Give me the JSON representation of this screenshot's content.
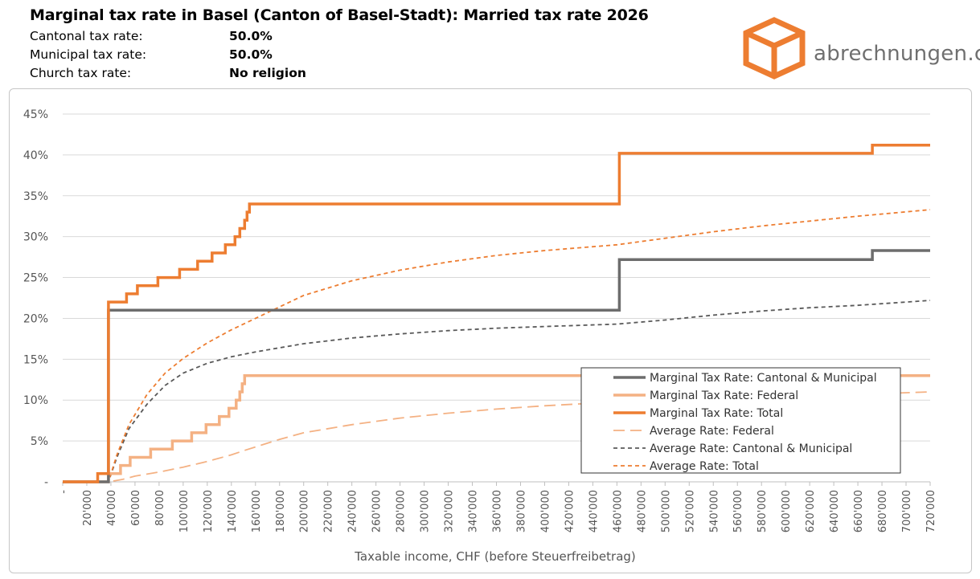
{
  "header": {
    "title": "Marginal tax rate in Basel (Canton of Basel-Stadt): Married tax rate 2026",
    "info": [
      {
        "label": "Cantonal tax rate:",
        "value": "50.0%"
      },
      {
        "label": "Municipal tax rate:",
        "value": "50.0%"
      },
      {
        "label": "Church tax rate:",
        "value": "No religion"
      }
    ]
  },
  "brand": {
    "name": "abrechnungen.ch",
    "logo_icon": "cube-icon",
    "color": "#ed7d31"
  },
  "chart_data": {
    "type": "line",
    "xlabel": "Taxable income, CHF (before Steuerfreibetrag)",
    "ylabel": "",
    "xlim": [
      0,
      720000
    ],
    "ylim": [
      0,
      45
    ],
    "grid": true,
    "legend_position": "right",
    "y_ticks": [
      0,
      5,
      10,
      15,
      20,
      25,
      30,
      35,
      40,
      45
    ],
    "y_tick_labels": [
      "-",
      "5%",
      "10%",
      "15%",
      "20%",
      "25%",
      "30%",
      "35%",
      "40%",
      "45%"
    ],
    "x_ticks": [
      0,
      20000,
      40000,
      60000,
      80000,
      100000,
      120000,
      140000,
      160000,
      180000,
      200000,
      220000,
      240000,
      260000,
      280000,
      300000,
      320000,
      340000,
      360000,
      380000,
      400000,
      420000,
      440000,
      460000,
      480000,
      500000,
      520000,
      540000,
      560000,
      580000,
      600000,
      620000,
      640000,
      660000,
      680000,
      700000,
      720000
    ],
    "x_tick_labels": [
      "-",
      "20'000",
      "40'000",
      "60'000",
      "80'000",
      "100'000",
      "120'000",
      "140'000",
      "160'000",
      "180'000",
      "200'000",
      "220'000",
      "240'000",
      "260'000",
      "280'000",
      "300'000",
      "320'000",
      "340'000",
      "360'000",
      "380'000",
      "400'000",
      "420'000",
      "440'000",
      "460'000",
      "480'000",
      "500'000",
      "520'000",
      "540'000",
      "560'000",
      "580'000",
      "600'000",
      "620'000",
      "640'000",
      "660'000",
      "680'000",
      "700'000",
      "720'000"
    ],
    "series": [
      {
        "name": "Marginal Tax Rate: Cantonal & Municipal",
        "color": "#6d6d6d",
        "style": "solid",
        "step": true,
        "points": [
          [
            0,
            0
          ],
          [
            38000,
            0
          ],
          [
            38000,
            21
          ],
          [
            462000,
            21
          ],
          [
            462000,
            27.2
          ],
          [
            672000,
            27.2
          ],
          [
            672000,
            28.3
          ],
          [
            720000,
            28.3
          ]
        ]
      },
      {
        "name": "Marginal Tax Rate: Federal",
        "color": "#f4b183",
        "style": "solid",
        "step": true,
        "points": [
          [
            0,
            0
          ],
          [
            38000,
            0
          ],
          [
            38000,
            1
          ],
          [
            48000,
            1
          ],
          [
            48000,
            2
          ],
          [
            56000,
            2
          ],
          [
            56000,
            3
          ],
          [
            73000,
            3
          ],
          [
            73000,
            4
          ],
          [
            91000,
            4
          ],
          [
            91000,
            5
          ],
          [
            107000,
            5
          ],
          [
            107000,
            6
          ],
          [
            119000,
            6
          ],
          [
            119000,
            7
          ],
          [
            130000,
            7
          ],
          [
            130000,
            8
          ],
          [
            138000,
            8
          ],
          [
            138000,
            9
          ],
          [
            144000,
            9
          ],
          [
            144000,
            10
          ],
          [
            147000,
            10
          ],
          [
            147000,
            11
          ],
          [
            149000,
            11
          ],
          [
            149000,
            12
          ],
          [
            151000,
            12
          ],
          [
            151000,
            13
          ],
          [
            720000,
            13
          ]
        ]
      },
      {
        "name": "Marginal Tax Rate: Total",
        "color": "#ed7d31",
        "style": "solid",
        "step": true,
        "points": [
          [
            0,
            0
          ],
          [
            29000,
            0
          ],
          [
            29000,
            1
          ],
          [
            38000,
            1
          ],
          [
            38000,
            22
          ],
          [
            53000,
            22
          ],
          [
            53000,
            23
          ],
          [
            62000,
            23
          ],
          [
            62000,
            24
          ],
          [
            79000,
            24
          ],
          [
            79000,
            25
          ],
          [
            97000,
            25
          ],
          [
            97000,
            26
          ],
          [
            112000,
            26
          ],
          [
            112000,
            27
          ],
          [
            124000,
            27
          ],
          [
            124000,
            28
          ],
          [
            135000,
            28
          ],
          [
            135000,
            29
          ],
          [
            143000,
            29
          ],
          [
            143000,
            30
          ],
          [
            147000,
            30
          ],
          [
            147000,
            31
          ],
          [
            151000,
            31
          ],
          [
            151000,
            32
          ],
          [
            153000,
            32
          ],
          [
            153000,
            33
          ],
          [
            155000,
            33
          ],
          [
            155000,
            34
          ],
          [
            462000,
            34
          ],
          [
            462000,
            40.2
          ],
          [
            672000,
            40.2
          ],
          [
            672000,
            41.2
          ],
          [
            720000,
            41.2
          ]
        ]
      },
      {
        "name": "Average Rate: Federal",
        "color": "#f4b183",
        "style": "longdash",
        "step": false,
        "points": [
          [
            0,
            0
          ],
          [
            38000,
            0
          ],
          [
            50000,
            0.3
          ],
          [
            60000,
            0.7
          ],
          [
            80000,
            1.2
          ],
          [
            100000,
            1.8
          ],
          [
            120000,
            2.5
          ],
          [
            140000,
            3.3
          ],
          [
            150000,
            3.8
          ],
          [
            180000,
            5.2
          ],
          [
            200000,
            6.0
          ],
          [
            240000,
            7.0
          ],
          [
            280000,
            7.8
          ],
          [
            320000,
            8.4
          ],
          [
            360000,
            8.9
          ],
          [
            400000,
            9.3
          ],
          [
            450000,
            9.7
          ],
          [
            500000,
            10.0
          ],
          [
            560000,
            10.3
          ],
          [
            620000,
            10.6
          ],
          [
            680000,
            10.8
          ],
          [
            720000,
            11.0
          ]
        ]
      },
      {
        "name": "Average Rate: Cantonal & Municipal",
        "color": "#595959",
        "style": "dash",
        "step": false,
        "points": [
          [
            0,
            0
          ],
          [
            38000,
            0
          ],
          [
            45000,
            3.0
          ],
          [
            55000,
            6.5
          ],
          [
            70000,
            9.5
          ],
          [
            85000,
            11.8
          ],
          [
            100000,
            13.3
          ],
          [
            120000,
            14.5
          ],
          [
            140000,
            15.3
          ],
          [
            160000,
            15.9
          ],
          [
            200000,
            16.9
          ],
          [
            240000,
            17.6
          ],
          [
            280000,
            18.1
          ],
          [
            320000,
            18.5
          ],
          [
            360000,
            18.8
          ],
          [
            400000,
            19.0
          ],
          [
            460000,
            19.3
          ],
          [
            500000,
            19.8
          ],
          [
            540000,
            20.4
          ],
          [
            580000,
            20.9
          ],
          [
            620000,
            21.3
          ],
          [
            660000,
            21.6
          ],
          [
            720000,
            22.2
          ]
        ]
      },
      {
        "name": "Average Rate: Total",
        "color": "#ed7d31",
        "style": "dash",
        "step": false,
        "points": [
          [
            0,
            0
          ],
          [
            38000,
            0
          ],
          [
            45000,
            3.3
          ],
          [
            55000,
            7.0
          ],
          [
            70000,
            10.7
          ],
          [
            85000,
            13.3
          ],
          [
            100000,
            15.1
          ],
          [
            120000,
            17.0
          ],
          [
            140000,
            18.6
          ],
          [
            160000,
            20.0
          ],
          [
            200000,
            22.8
          ],
          [
            240000,
            24.6
          ],
          [
            280000,
            25.9
          ],
          [
            320000,
            26.9
          ],
          [
            360000,
            27.7
          ],
          [
            400000,
            28.3
          ],
          [
            460000,
            29.0
          ],
          [
            500000,
            29.8
          ],
          [
            540000,
            30.6
          ],
          [
            580000,
            31.3
          ],
          [
            620000,
            31.9
          ],
          [
            660000,
            32.5
          ],
          [
            720000,
            33.3
          ]
        ]
      }
    ]
  }
}
